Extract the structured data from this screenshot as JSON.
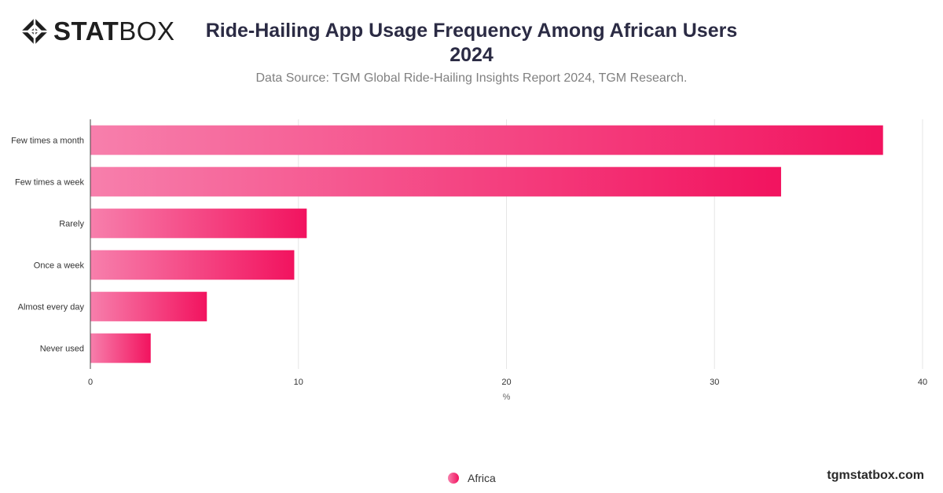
{
  "logo": {
    "bold_text": "STAT",
    "light_text": "BOX"
  },
  "header": {
    "title": "Ride-Hailing App Usage Frequency Among African Users 2024",
    "subtitle": "Data Source: TGM Global Ride-Hailing Insights Report 2024, TGM Research."
  },
  "chart_data": {
    "type": "bar",
    "orientation": "horizontal",
    "categories": [
      "Few times a month",
      "Few times a week",
      "Rarely",
      "Once a week",
      "Almost every day",
      "Never used"
    ],
    "series": [
      {
        "name": "Africa",
        "values": [
          38.1,
          33.2,
          10.4,
          9.8,
          5.6,
          2.9
        ]
      }
    ],
    "xlabel": "%",
    "xlim": [
      0,
      40
    ],
    "xticks": [
      0,
      10,
      20,
      30,
      40
    ],
    "grid": true,
    "legend": "bottom-center",
    "colors": {
      "bar_start": "#f77fac",
      "bar_end": "#f2135f",
      "grid": "#e6e6e6"
    }
  },
  "footer": {
    "url": "tgmstatbox.com"
  }
}
